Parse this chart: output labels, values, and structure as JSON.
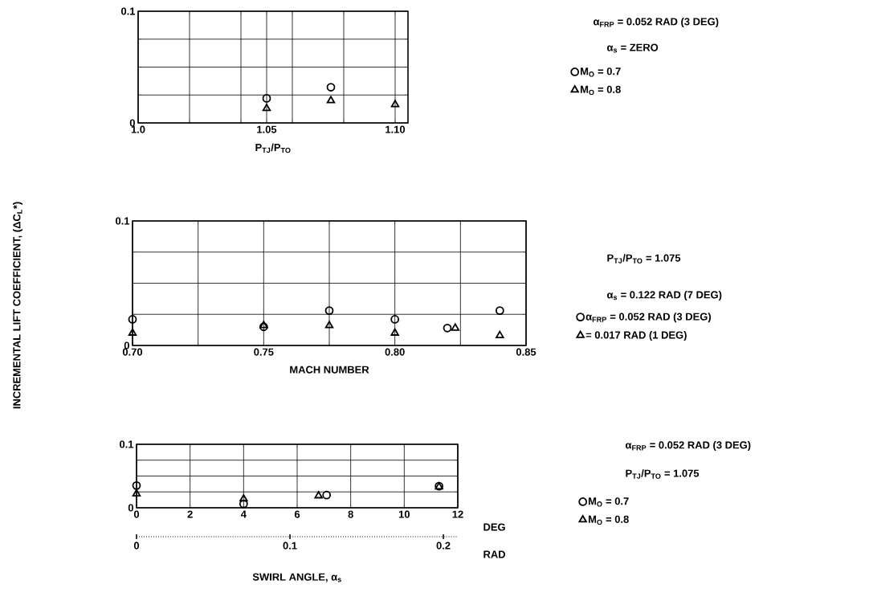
{
  "chart_data": [
    {
      "type": "scatter",
      "xlabel": "P$_{TJ}$/P$_{TO}$",
      "annotations": [
        "α$_{FRP}$ = 0.052 RAD (3 DEG)",
        "α$_{s}$ = ZERO"
      ],
      "series": [
        {
          "name": "M$_{O}$ = 0.7",
          "color": "#000000",
          "marker": "circle",
          "x": [
            1.05,
            1.075
          ],
          "values": [
            0.022,
            0.032
          ]
        },
        {
          "name": "M$_{O}$ = 0.8",
          "color": "#000000",
          "marker": "triangle",
          "x": [
            1.05,
            1.075,
            1.1
          ],
          "values": [
            0.013,
            0.02,
            0.0165
          ]
        }
      ],
      "xlim": [
        1.0,
        1.105
      ],
      "ylim": [
        0,
        0.1
      ],
      "xticks": [
        {
          "value": 1.0,
          "label": "1.0"
        },
        {
          "value": 1.02,
          "label": null
        },
        {
          "value": 1.04,
          "label": null
        },
        {
          "value": 1.05,
          "label": "1.05"
        },
        {
          "value": 1.06,
          "label": null
        },
        {
          "value": 1.08,
          "label": null
        },
        {
          "value": 1.1,
          "label": "1.10"
        }
      ],
      "yticks": [
        0,
        {
          "value": 0.025,
          "label": null
        },
        {
          "value": 0.05,
          "label": null
        },
        {
          "value": 0.075,
          "label": null
        },
        0.1
      ],
      "grid": true,
      "legend": "right"
    },
    {
      "type": "scatter",
      "xlabel": "MACH NUMBER",
      "ylabel": "INCREMENTAL LIFT COEFFICIENT, (ΔC$_{L}$*)",
      "annotations": [
        "P$_{TJ}$/P$_{TO}$ = 1.075",
        "α$_{s}$ = 0.122 RAD (7 DEG)"
      ],
      "series": [
        {
          "name": "α$_{FRP}$ = 0.052 RAD (3 DEG)",
          "color": "#000000",
          "marker": "circle",
          "x": [
            0.7,
            0.75,
            0.775,
            0.8,
            0.82,
            0.84
          ],
          "values": [
            0.021,
            0.015,
            0.028,
            0.021,
            0.014,
            0.028
          ]
        },
        {
          "name": "= 0.017 RAD (1 DEG)",
          "color": "#000000",
          "marker": "triangle",
          "x": [
            0.7,
            0.75,
            0.775,
            0.8,
            0.823,
            0.84
          ],
          "values": [
            0.01,
            0.016,
            0.016,
            0.01,
            0.014,
            0.008
          ]
        }
      ],
      "xlim": [
        0.7,
        0.85
      ],
      "ylim": [
        0,
        0.1
      ],
      "xticks": [
        {
          "value": 0.7,
          "label": "0.70"
        },
        {
          "value": 0.725,
          "label": null
        },
        {
          "value": 0.75,
          "label": "0.75"
        },
        {
          "value": 0.775,
          "label": null
        },
        {
          "value": 0.8,
          "label": "0.80"
        },
        {
          "value": 0.825,
          "label": null
        },
        {
          "value": 0.85,
          "label": "0.85"
        }
      ],
      "yticks": [
        0,
        {
          "value": 0.025,
          "label": null
        },
        {
          "value": 0.05,
          "label": null
        },
        {
          "value": 0.075,
          "label": null
        },
        0.1
      ],
      "grid": true,
      "legend": "right"
    },
    {
      "type": "scatter",
      "xlabel": "SWIRL ANGLE, α$_{s}$",
      "annotations": [
        "α$_{FRP}$ = 0.052 RAD (3 DEG)",
        "P$_{TJ}$/P$_{TO}$ = 1.075",
        "DEG",
        "RAD"
      ],
      "series": [
        {
          "name": "M$_{O}$ = 0.7",
          "color": "#000000",
          "marker": "circle",
          "x": [
            0,
            4,
            7.1,
            11.3
          ],
          "values": [
            0.035,
            0.006,
            0.02,
            0.034
          ]
        },
        {
          "name": "M$_{O}$ = 0.8",
          "color": "#000000",
          "marker": "triangle",
          "x": [
            0,
            4,
            6.8,
            11.3
          ],
          "values": [
            0.022,
            0.014,
            0.019,
            0.033
          ]
        }
      ],
      "xlim": [
        0,
        12
      ],
      "ylim": [
        0,
        0.1
      ],
      "xticks": [
        0,
        2,
        4,
        6,
        8,
        10,
        12
      ],
      "yticks": [
        0,
        {
          "value": 0.025,
          "label": null
        },
        {
          "value": 0.05,
          "label": null
        },
        {
          "value": 0.075,
          "label": null
        },
        0.1
      ],
      "x2lim": [
        0,
        0.2094
      ],
      "x2ticks": [
        0,
        0.1,
        0.2
      ],
      "grid": true,
      "legend": "right"
    }
  ]
}
